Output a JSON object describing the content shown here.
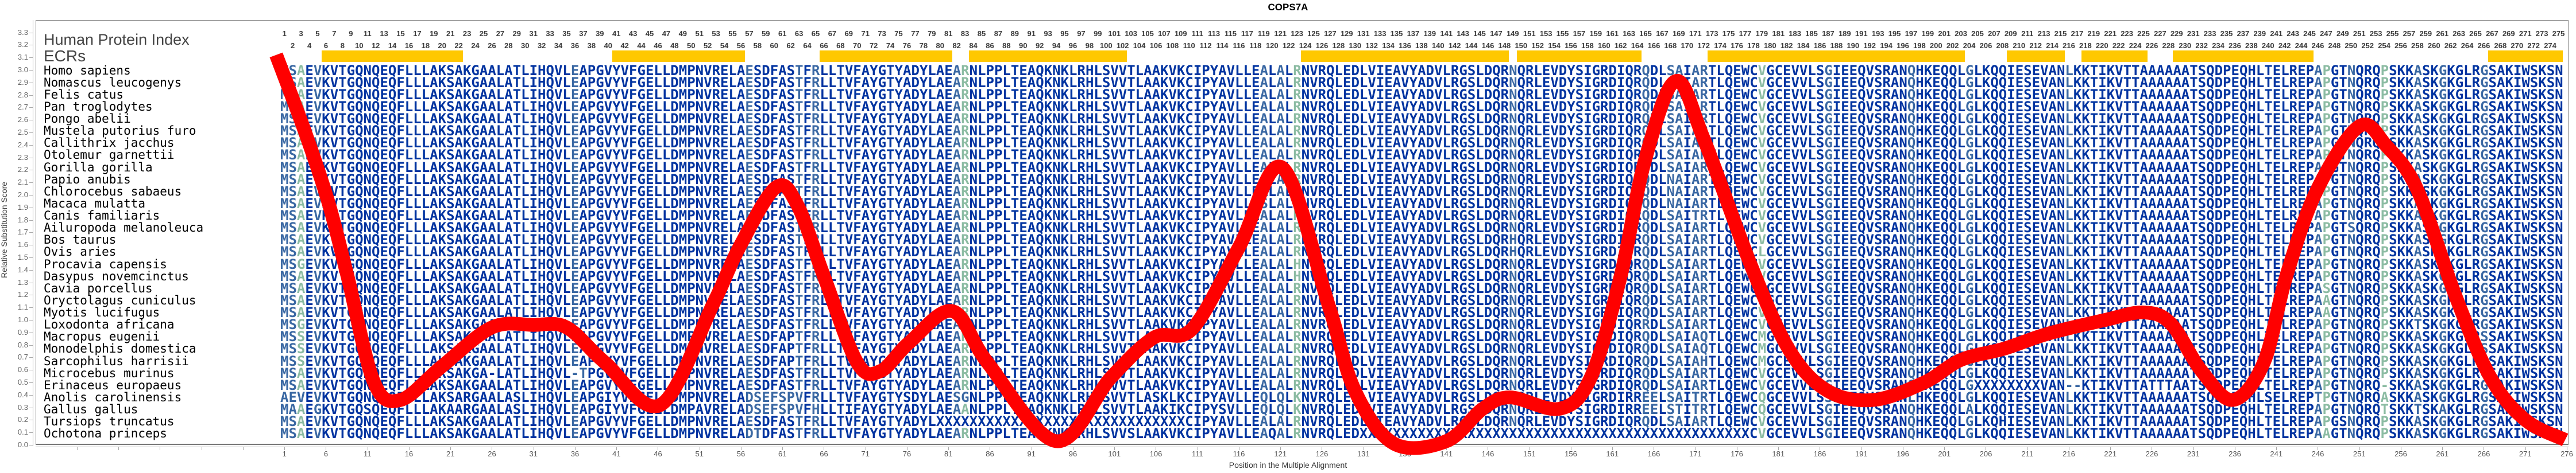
{
  "title": "COPS7A",
  "header": {
    "index_label": "Human Protein Index",
    "ecr_label": "ECRs"
  },
  "axes": {
    "xlabel": "Position in the Multiple Alignment",
    "ylabel": "Relative Substitution Score",
    "y_ticks": [
      "0.0",
      "0.1",
      "0.2",
      "0.3",
      "0.4",
      "0.5",
      "0.6",
      "0.7",
      "0.8",
      "0.9",
      "1.0",
      "1.1",
      "1.2",
      "1.3",
      "1.4",
      "1.5",
      "1.6",
      "1.7",
      "1.8",
      "1.9",
      "2.0",
      "2.1",
      "2.2",
      "2.3",
      "2.4",
      "2.5",
      "2.6",
      "2.7",
      "2.8",
      "2.9",
      "3.0",
      "3.1",
      "3.2",
      "3.3"
    ],
    "x_tick_start": 1,
    "x_tick_end": 276,
    "x_tick_step": 5
  },
  "colors": {
    "conserved": "#0033a0",
    "moderate": "#3a68a3",
    "variable": "#8cbca3",
    "ecr": "#ffc800",
    "curve": "#ff0000"
  },
  "alignment_length": 275,
  "reference": "MSAEVKVTGQNQEQFLLLAKSAKGAALATLIHQVLEAPGVYVFGELLDMPNVRELAESDFASTFRLLTVFAYGTYADYLAEARNLPPLTEAQKNKLRHLSVVTLAAKVKCIPYAVLLEALALRNVRQLEDLVIEAVYADVLRGSLDQRNQRLEVDYSIGRDIQRQDLSAIARTLQEWCVGCEVVLSGIEEQVSRANQHKEQQLGLKQQIESEVANLKKTIKVTTAAAAAATSQDPEQHLTELREPAPGTNQRQPSKKASKGKGLRGSAKIWSKSN",
  "variable_columns": [
    3,
    83,
    123,
    179,
    247,
    254
  ],
  "moderate_columns": [
    1,
    2,
    5,
    36,
    57,
    63,
    65,
    82,
    119,
    121,
    149,
    165,
    168,
    169,
    171,
    172,
    187,
    197,
    204,
    216,
    246,
    250,
    258,
    261,
    266
  ],
  "ecr_regions": [
    [
      6,
      22
    ],
    [
      41,
      56
    ],
    [
      66,
      81
    ],
    [
      84,
      102
    ],
    [
      124,
      148
    ],
    [
      150,
      164
    ],
    [
      173,
      203
    ],
    [
      209,
      215
    ],
    [
      218,
      225
    ],
    [
      229,
      245
    ],
    [
      267,
      275
    ]
  ],
  "species": [
    {
      "name": "Homo sapiens",
      "diffs": []
    },
    {
      "name": "Nomascus leucogenys",
      "diffs": []
    },
    {
      "name": "Felis catus",
      "diffs": []
    },
    {
      "name": "Pan troglodytes",
      "diffs": []
    },
    {
      "name": "Pongo abelii",
      "diffs": []
    },
    {
      "name": "Mustela putorius furo",
      "diffs": []
    },
    {
      "name": "Callithrix jacchus",
      "diffs": []
    },
    {
      "name": "Otolemur garnettii",
      "diffs": []
    },
    {
      "name": "Gorilla gorilla",
      "diffs": []
    },
    {
      "name": "Papio anubis",
      "diffs": [
        [
          168,
          "N"
        ]
      ]
    },
    {
      "name": "Chlorocebus sabaeus",
      "diffs": [
        [
          168,
          "N"
        ]
      ]
    },
    {
      "name": "Macaca mulatta",
      "diffs": [
        [
          119,
          "S"
        ],
        [
          168,
          "N"
        ]
      ]
    },
    {
      "name": "Canis familiaris",
      "diffs": [
        [
          171,
          "T"
        ]
      ]
    },
    {
      "name": "Ailuropoda melanoleuca",
      "diffs": [
        [
          250,
          "S"
        ]
      ]
    },
    {
      "name": "Bos taurus",
      "diffs": [
        [
          149,
          "H"
        ]
      ]
    },
    {
      "name": "Ovis aries",
      "diffs": [
        [
          149,
          "H"
        ],
        [
          179,
          "L"
        ]
      ]
    },
    {
      "name": "Procavia capensis",
      "diffs": [
        [
          3,
          "G"
        ],
        [
          123,
          "H"
        ]
      ]
    },
    {
      "name": "Dasypus novemcinctus",
      "diffs": [
        [
          123,
          "H"
        ]
      ]
    },
    {
      "name": "Cavia porcellus",
      "diffs": [
        [
          247,
          "S"
        ]
      ]
    },
    {
      "name": "Oryctolagus cuniculus",
      "diffs": [
        [
          247,
          "A"
        ]
      ]
    },
    {
      "name": "Myotis lucifugus",
      "diffs": [
        [
          247,
          "A"
        ]
      ]
    },
    {
      "name": "Loxodonta africana",
      "diffs": [
        [
          3,
          "G"
        ],
        [
          165,
          "R"
        ],
        [
          258,
          "T"
        ]
      ]
    },
    {
      "name": "Macropus eugenii",
      "diffs": [
        [
          3,
          "S"
        ],
        [
          62,
          "P"
        ],
        [
          168,
          "S"
        ],
        [
          172,
          "Q"
        ],
        [
          179,
          "M"
        ],
        [
          266,
          "S"
        ]
      ]
    },
    {
      "name": "Monodelphis domestica",
      "diffs": [
        [
          3,
          "S"
        ],
        [
          62,
          "P"
        ],
        [
          168,
          "S"
        ],
        [
          172,
          "Q"
        ],
        [
          179,
          "M"
        ],
        [
          266,
          "S"
        ]
      ]
    },
    {
      "name": "Sarcophilus harrisii",
      "diffs": [
        [
          3,
          "S"
        ],
        [
          62,
          "P"
        ],
        [
          168,
          "S"
        ],
        [
          172,
          "H"
        ],
        [
          179,
          "M"
        ],
        [
          266,
          "S"
        ]
      ]
    },
    {
      "name": "Microcebus murinus",
      "diffs": [
        [
          26,
          "-"
        ],
        [
          36,
          "-T"
        ]
      ]
    },
    {
      "name": "Erinaceus europaeus",
      "diffs": [
        [
          205,
          "XXXXXXXX"
        ],
        [
          216,
          "--"
        ],
        [
          226,
          "TTT"
        ],
        [
          254,
          "-"
        ]
      ]
    },
    {
      "name": "Anolis carolinensis",
      "diffs": [
        [
          1,
          "AEV"
        ],
        [
          23,
          "R"
        ],
        [
          29,
          "S"
        ],
        [
          40,
          "I"
        ],
        [
          57,
          "DSEFSPV"
        ],
        [
          76,
          "S"
        ],
        [
          82,
          "SG"
        ],
        [
          106,
          "S"
        ],
        [
          108,
          "L"
        ],
        [
          119,
          "Q"
        ],
        [
          121,
          "Q"
        ],
        [
          123,
          "K"
        ],
        [
          163,
          "R"
        ],
        [
          165,
          "EE"
        ],
        [
          171,
          "T"
        ],
        [
          179,
          "Q"
        ],
        [
          187,
          "S"
        ],
        [
          197,
          "L"
        ],
        [
          240,
          "S"
        ],
        [
          246,
          "T"
        ],
        [
          254,
          "A"
        ]
      ]
    },
    {
      "name": "Gallus gallus",
      "diffs": [
        [
          2,
          "A"
        ],
        [
          5,
          "G"
        ],
        [
          11,
          "S"
        ],
        [
          21,
          "A"
        ],
        [
          23,
          "R"
        ],
        [
          29,
          "S"
        ],
        [
          40,
          "I"
        ],
        [
          51,
          "A"
        ],
        [
          57,
          "DSEFSPV"
        ],
        [
          65,
          "H"
        ],
        [
          69,
          "I"
        ],
        [
          83,
          "A"
        ],
        [
          108,
          "I"
        ],
        [
          114,
          "S"
        ],
        [
          119,
          "Q"
        ],
        [
          121,
          "Q"
        ],
        [
          123,
          "K"
        ],
        [
          163,
          "R"
        ],
        [
          165,
          "EE"
        ],
        [
          169,
          "T"
        ],
        [
          171,
          "T"
        ],
        [
          179,
          "Q"
        ],
        [
          204,
          "A"
        ],
        [
          254,
          "T"
        ],
        [
          258,
          "T"
        ],
        [
          261,
          "A"
        ]
      ]
    },
    {
      "name": "Tursiops truncatus",
      "diffs": [
        [
          80,
          "XXXXXXXXXXXXXXXXXXXXXXXXXXXXXX"
        ],
        [
          208,
          "H"
        ],
        [
          249,
          "S"
        ]
      ]
    },
    {
      "name": "Ochotona princeps",
      "diffs": [
        [
          57,
          "DT"
        ],
        [
          103,
          "S"
        ],
        [
          120,
          "Q"
        ],
        [
          131,
          "XXXXXXXXXXXXXXXXXXXXXXXXXXXXXXXXXXXXXXXXXXXXXXX"
        ],
        [
          247,
          "A"
        ]
      ]
    }
  ],
  "chart_data": {
    "type": "line",
    "title": "COPS7A",
    "xlabel": "Position in the Multiple Alignment",
    "ylabel": "Relative Substitution Score",
    "ylim": [
      0,
      3.3
    ],
    "xlim": [
      1,
      276
    ],
    "series": [
      {
        "name": "Relative Substitution Score",
        "points": [
          [
            0,
            3.12
          ],
          [
            3.5,
            2.5
          ],
          [
            6.3,
            1.94
          ],
          [
            8.6,
            1.35
          ],
          [
            11.8,
            0.5
          ],
          [
            15,
            0.36
          ],
          [
            20,
            0.63
          ],
          [
            26,
            0.94
          ],
          [
            31,
            0.96
          ],
          [
            35,
            0.94
          ],
          [
            39.6,
            0.66
          ],
          [
            46.3,
            0.32
          ],
          [
            52.6,
            1.12
          ],
          [
            55.8,
            1.58
          ],
          [
            60.2,
            2.06
          ],
          [
            62.8,
            1.92
          ],
          [
            66,
            1.35
          ],
          [
            70,
            0.66
          ],
          [
            72.8,
            0.59
          ],
          [
            76.3,
            0.82
          ],
          [
            81.5,
            1.07
          ],
          [
            85.7,
            0.66
          ],
          [
            94,
            0.03
          ],
          [
            100.6,
            0.54
          ],
          [
            105.8,
            0.86
          ],
          [
            110.4,
            0.93
          ],
          [
            116,
            1.58
          ],
          [
            121.2,
            2.22
          ],
          [
            126.8,
            1.12
          ],
          [
            130,
            0.43
          ],
          [
            134.7,
            0.01
          ],
          [
            141,
            0.03
          ],
          [
            145.4,
            0.29
          ],
          [
            148.7,
            0.38
          ],
          [
            154.7,
            0.29
          ],
          [
            158.4,
            0.54
          ],
          [
            162,
            1.35
          ],
          [
            164.9,
            2.27
          ],
          [
            168.6,
            2.91
          ],
          [
            172,
            2.45
          ],
          [
            177.8,
            1.42
          ],
          [
            182.4,
            0.75
          ],
          [
            187,
            0.43
          ],
          [
            192.5,
            0.36
          ],
          [
            198.6,
            0.5
          ],
          [
            203,
            0.68
          ],
          [
            208.2,
            0.77
          ],
          [
            213.5,
            0.89
          ],
          [
            220.4,
            1.0
          ],
          [
            225,
            1.06
          ],
          [
            228.3,
            0.97
          ],
          [
            232,
            0.59
          ],
          [
            235.8,
            0.36
          ],
          [
            239.5,
            0.66
          ],
          [
            242.2,
            1.35
          ],
          [
            245.9,
            2.04
          ],
          [
            251,
            2.55
          ],
          [
            254.3,
            2.39
          ],
          [
            258,
            2.04
          ],
          [
            262.6,
            1.19
          ],
          [
            266.8,
            0.54
          ],
          [
            271,
            0.2
          ],
          [
            275.8,
            0.04
          ]
        ]
      }
    ]
  }
}
